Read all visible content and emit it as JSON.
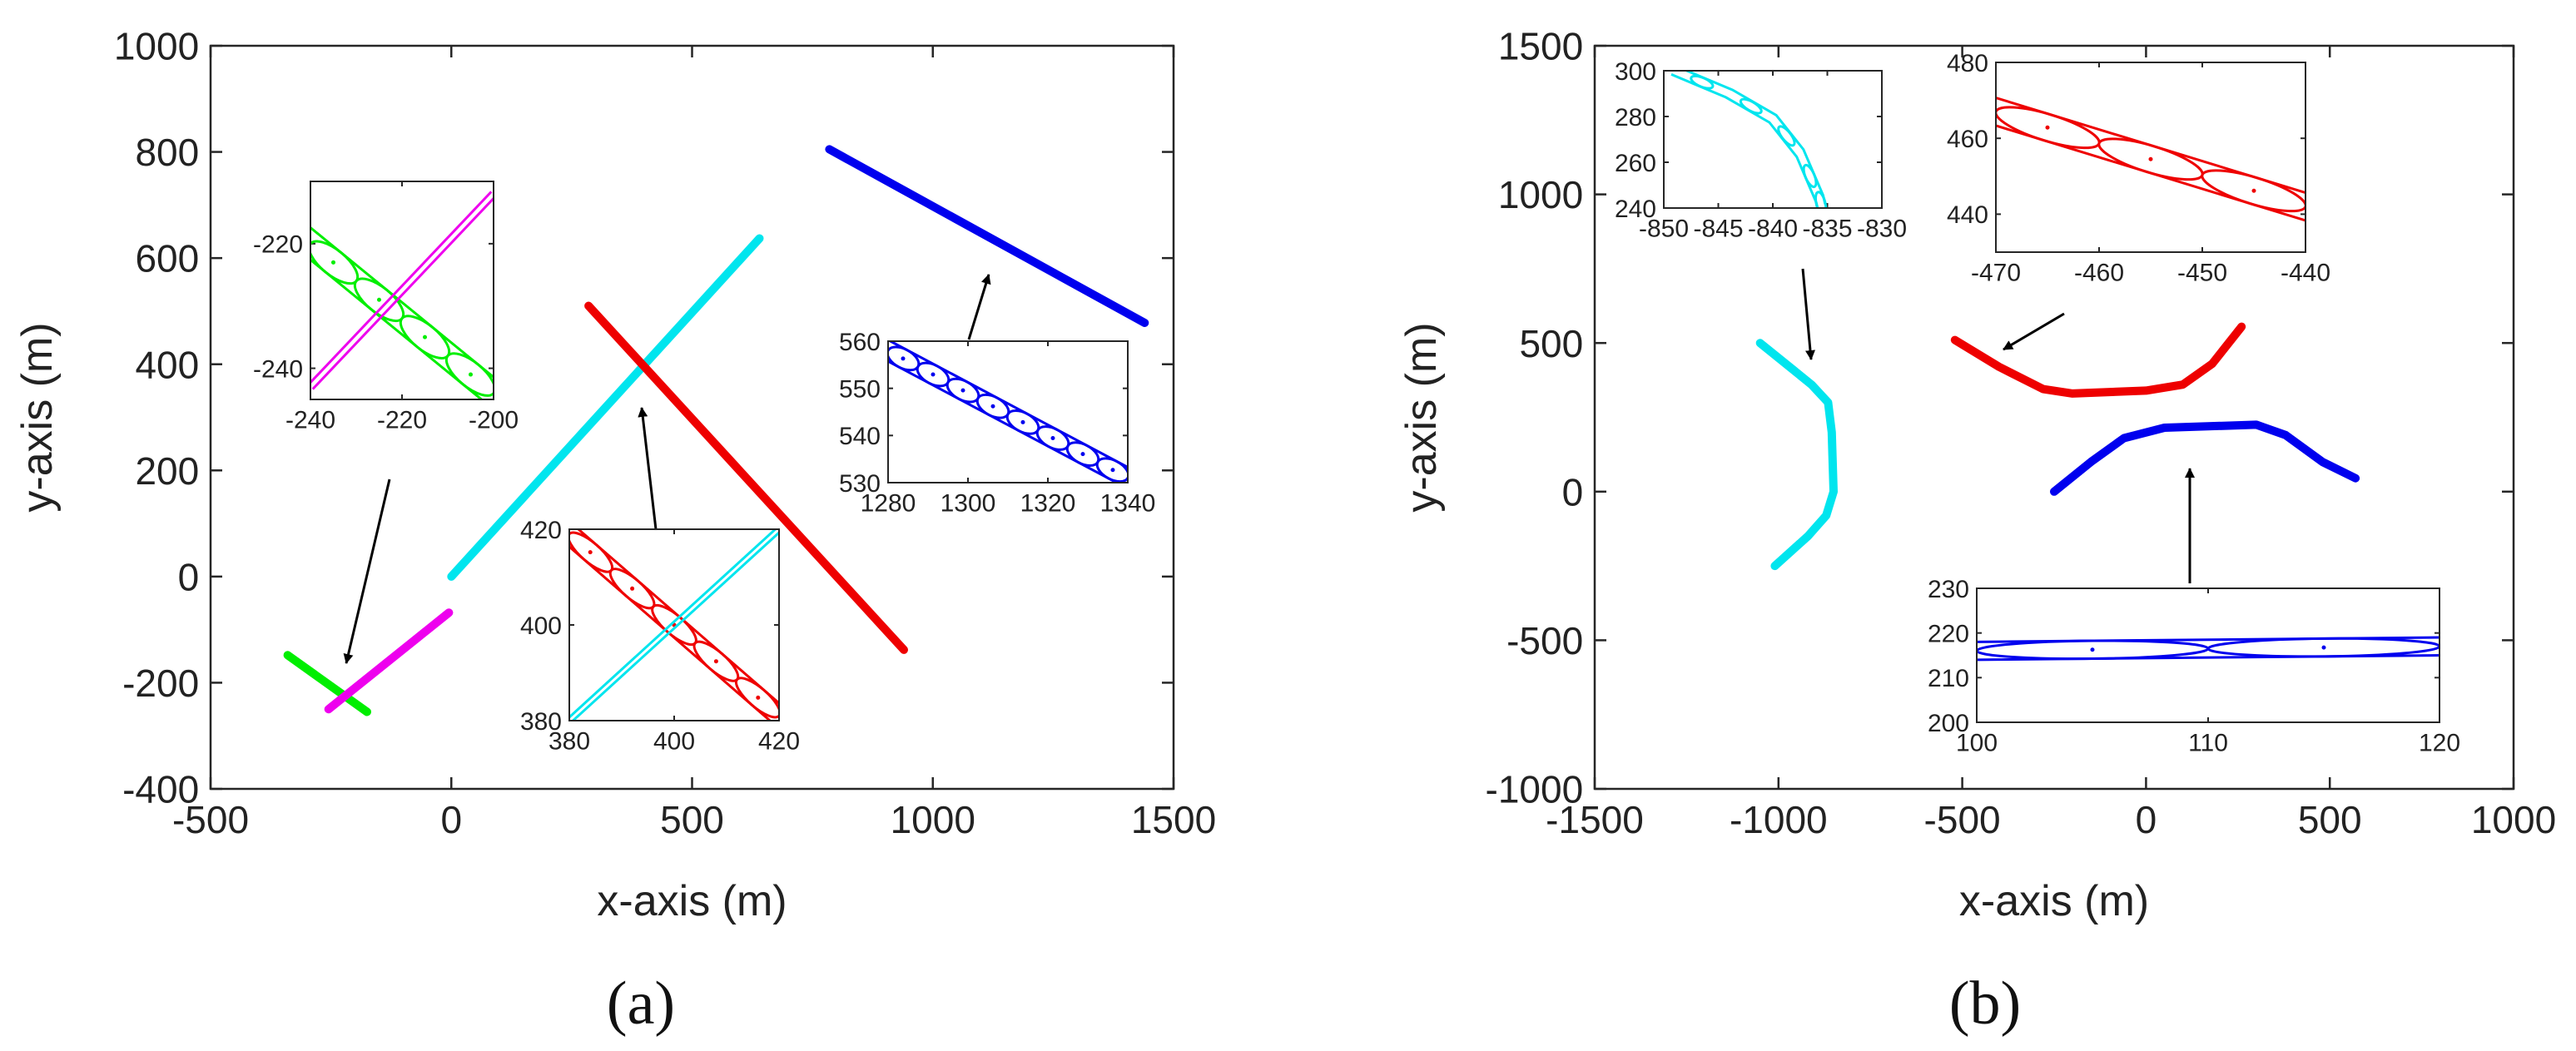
{
  "figure": {
    "panel_a_caption": "(a)",
    "panel_b_caption": "(b)"
  },
  "chart_data": [
    {
      "id": "a",
      "type": "line",
      "xlabel": "x-axis (m)",
      "ylabel": "y-axis (m)",
      "xlim": [
        -500,
        1500
      ],
      "ylim": [
        -400,
        1000
      ],
      "xticks": [
        -500,
        0,
        500,
        1000,
        1500
      ],
      "yticks": [
        -400,
        -200,
        0,
        200,
        400,
        600,
        800,
        1000
      ],
      "grid": false,
      "series": [
        {
          "name": "green",
          "color": "#00ee00",
          "points": [
            [
              -340,
              -148
            ],
            [
              -175,
              -255
            ]
          ]
        },
        {
          "name": "magenta",
          "color": "#ee00ee",
          "points": [
            [
              -255,
              -250
            ],
            [
              -5,
              -68
            ]
          ]
        },
        {
          "name": "cyan",
          "color": "#00e5ee",
          "points": [
            [
              0,
              0
            ],
            [
              640,
              637
            ]
          ]
        },
        {
          "name": "red",
          "color": "#ee0000",
          "points": [
            [
              285,
              510
            ],
            [
              940,
              -138
            ]
          ]
        },
        {
          "name": "blue",
          "color": "#0000ee",
          "points": [
            [
              785,
              805
            ],
            [
              1440,
              478
            ]
          ]
        }
      ],
      "insets": [
        {
          "name": "green-magenta",
          "xlim": [
            -240,
            -200
          ],
          "ylim": [
            -245,
            -210
          ],
          "xticks": [
            -240,
            -220,
            -200
          ],
          "yticks": [
            -240,
            -220
          ],
          "series": [
            {
              "color": "#00ee00",
              "points": [
                [
                  -240,
                  -220
                ],
                [
                  -200,
                  -244
                ]
              ],
              "band": 4,
              "loops": 4
            },
            {
              "color": "#ee00ee",
              "points": [
                [
                  -240,
                  -243
                ],
                [
                  -200,
                  -212
                ]
              ],
              "band": 1,
              "loops": 0
            }
          ]
        },
        {
          "name": "red-cyan",
          "xlim": [
            380,
            420
          ],
          "ylim": [
            380,
            420
          ],
          "xticks": [
            380,
            400,
            420
          ],
          "yticks": [
            380,
            400,
            420
          ],
          "series": [
            {
              "color": "#ee0000",
              "points": [
                [
                  380,
                  419
                ],
                [
                  420,
                  381
                ]
              ],
              "band": 4,
              "loops": 5
            },
            {
              "color": "#00e5ee",
              "points": [
                [
                  380,
                  380
                ],
                [
                  420,
                  420
                ]
              ],
              "band": 0.8,
              "loops": 0
            }
          ]
        },
        {
          "name": "blue",
          "xlim": [
            1280,
            1340
          ],
          "ylim": [
            530,
            560
          ],
          "xticks": [
            1280,
            1300,
            1320,
            1340
          ],
          "yticks": [
            530,
            540,
            550,
            560
          ],
          "series": [
            {
              "color": "#0000ee",
              "points": [
                [
                  1280,
                  558
                ],
                [
                  1340,
                  531
                ]
              ],
              "band": 4,
              "loops": 8
            }
          ]
        }
      ]
    },
    {
      "id": "b",
      "type": "line",
      "xlabel": "x-axis (m)",
      "ylabel": "y-axis (m)",
      "xlim": [
        -1500,
        1000
      ],
      "ylim": [
        -1000,
        1500
      ],
      "xticks": [
        -1500,
        -1000,
        -500,
        0,
        500,
        1000
      ],
      "yticks": [
        -1000,
        -500,
        0,
        500,
        1000,
        1500
      ],
      "grid": false,
      "series": [
        {
          "name": "cyan",
          "color": "#00e5ee",
          "points": [
            [
              -1050,
              500
            ],
            [
              -910,
              360
            ],
            [
              -865,
              300
            ],
            [
              -855,
              200
            ],
            [
              -850,
              0
            ],
            [
              -870,
              -80
            ],
            [
              -920,
              -150
            ],
            [
              -1010,
              -250
            ]
          ]
        },
        {
          "name": "red",
          "color": "#ee0000",
          "points": [
            [
              -520,
              510
            ],
            [
              -400,
              420
            ],
            [
              -280,
              345
            ],
            [
              -200,
              330
            ],
            [
              0,
              340
            ],
            [
              100,
              360
            ],
            [
              180,
              430
            ],
            [
              260,
              555
            ]
          ]
        },
        {
          "name": "blue",
          "color": "#0000ee",
          "points": [
            [
              -250,
              0
            ],
            [
              -150,
              100
            ],
            [
              -60,
              180
            ],
            [
              50,
              215
            ],
            [
              300,
              225
            ],
            [
              380,
              190
            ],
            [
              480,
              100
            ],
            [
              570,
              45
            ]
          ]
        }
      ],
      "insets": [
        {
          "name": "cyan",
          "xlim": [
            -850,
            -830
          ],
          "ylim": [
            240,
            300
          ],
          "xticks": [
            -850,
            -845,
            -840,
            -835,
            -830
          ],
          "yticks": [
            240,
            260,
            280,
            300
          ],
          "series": [
            {
              "color": "#00e5ee",
              "points": [
                [
                  -849,
                  300
                ],
                [
                  -844,
                  290
                ],
                [
                  -840,
                  279
                ],
                [
                  -837.5,
                  264
                ],
                [
                  -835.7,
                  244
                ],
                [
                  -835.5,
                  240
                ]
              ],
              "band": 2,
              "loops": 5
            }
          ]
        },
        {
          "name": "red",
          "xlim": [
            -470,
            -440
          ],
          "ylim": [
            430,
            480
          ],
          "xticks": [
            -470,
            -460,
            -450,
            -440
          ],
          "yticks": [
            440,
            460,
            480
          ],
          "series": [
            {
              "color": "#ee0000",
              "points": [
                [
                  -470,
                  467
                ],
                [
                  -440,
                  442
                ]
              ],
              "band": 7,
              "loops": 3
            }
          ]
        },
        {
          "name": "blue",
          "xlim": [
            100,
            120
          ],
          "ylim": [
            200,
            230
          ],
          "xticks": [
            100,
            110,
            120
          ],
          "yticks": [
            200,
            210,
            220,
            230
          ],
          "series": [
            {
              "color": "#0000ee",
              "points": [
                [
                  100,
                  216
                ],
                [
                  120,
                  217
                ]
              ],
              "band": 4,
              "loops": 2
            }
          ]
        }
      ]
    }
  ]
}
